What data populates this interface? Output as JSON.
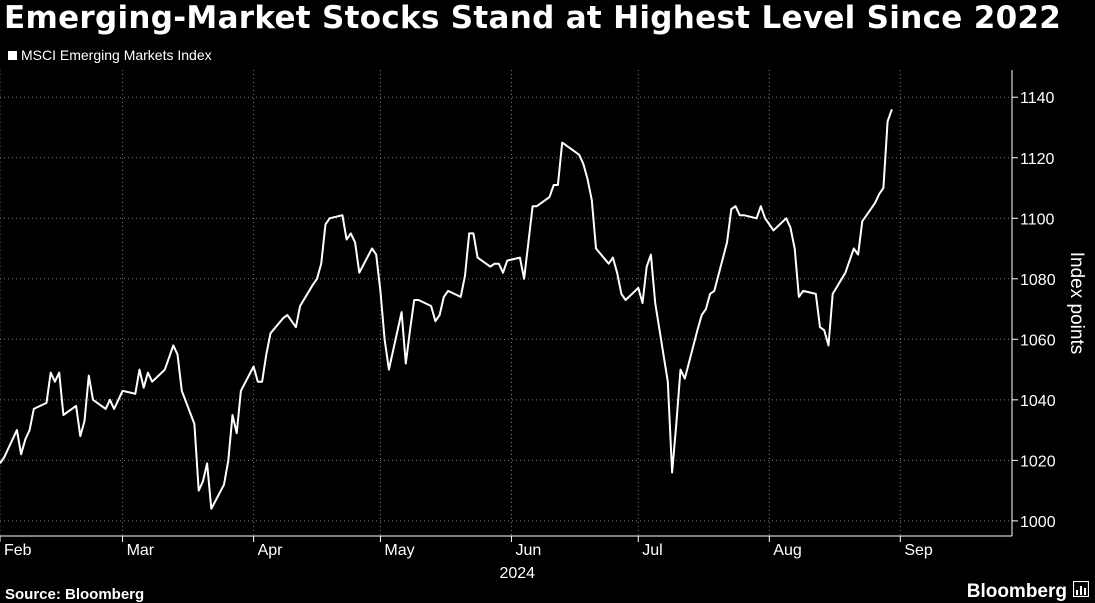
{
  "title": "Emerging-Market Stocks Stand at Highest Level Since 2022",
  "source": "Source: Bloomberg",
  "brand": "Bloomberg",
  "colors": {
    "background": "#000000",
    "line": "#ffffff",
    "grid": "#7a7a7a"
  },
  "chart_data": {
    "type": "line",
    "title": "Emerging-Market Stocks Stand at Highest Level Since 2022",
    "ylabel": "Index points",
    "xlabel": "",
    "x_tick_labels": [
      "Feb",
      "Mar",
      "Apr",
      "May",
      "Jun",
      "Jul",
      "Aug",
      "Sep"
    ],
    "x_year_label": "2024",
    "y_ticks": [
      1000,
      1020,
      1040,
      1060,
      1080,
      1100,
      1120,
      1140
    ],
    "ylim": [
      995,
      1149
    ],
    "xlim": [
      "2024-02-01",
      "2024-09-26"
    ],
    "y_axis_position": "right",
    "grid": true,
    "legend_position": "top-left",
    "series": [
      {
        "name": "MSCI Emerging Markets Index",
        "points": [
          [
            "2024-02-01",
            1019
          ],
          [
            "2024-02-02",
            1021
          ],
          [
            "2024-02-05",
            1030
          ],
          [
            "2024-02-06",
            1022
          ],
          [
            "2024-02-07",
            1027
          ],
          [
            "2024-02-08",
            1030
          ],
          [
            "2024-02-09",
            1037
          ],
          [
            "2024-02-12",
            1039
          ],
          [
            "2024-02-13",
            1049
          ],
          [
            "2024-02-14",
            1046
          ],
          [
            "2024-02-15",
            1049
          ],
          [
            "2024-02-16",
            1035
          ],
          [
            "2024-02-19",
            1038
          ],
          [
            "2024-02-20",
            1028
          ],
          [
            "2024-02-21",
            1033
          ],
          [
            "2024-02-22",
            1048
          ],
          [
            "2024-02-23",
            1040
          ],
          [
            "2024-02-26",
            1037
          ],
          [
            "2024-02-27",
            1040
          ],
          [
            "2024-02-28",
            1037
          ],
          [
            "2024-02-29",
            1040
          ],
          [
            "2024-03-01",
            1043
          ],
          [
            "2024-03-04",
            1042
          ],
          [
            "2024-03-05",
            1050
          ],
          [
            "2024-03-06",
            1044
          ],
          [
            "2024-03-07",
            1049
          ],
          [
            "2024-03-08",
            1046
          ],
          [
            "2024-03-11",
            1050
          ],
          [
            "2024-03-12",
            1054
          ],
          [
            "2024-03-13",
            1058
          ],
          [
            "2024-03-14",
            1055
          ],
          [
            "2024-03-15",
            1043
          ],
          [
            "2024-03-18",
            1032
          ],
          [
            "2024-03-19",
            1010
          ],
          [
            "2024-03-20",
            1013
          ],
          [
            "2024-03-21",
            1019
          ],
          [
            "2024-03-22",
            1004
          ],
          [
            "2024-03-25",
            1012
          ],
          [
            "2024-03-26",
            1020
          ],
          [
            "2024-03-27",
            1035
          ],
          [
            "2024-03-28",
            1029
          ],
          [
            "2024-03-29",
            1043
          ],
          [
            "2024-04-01",
            1051
          ],
          [
            "2024-04-02",
            1046
          ],
          [
            "2024-04-03",
            1046
          ],
          [
            "2024-04-04",
            1055
          ],
          [
            "2024-04-05",
            1062
          ],
          [
            "2024-04-08",
            1067
          ],
          [
            "2024-04-09",
            1068
          ],
          [
            "2024-04-10",
            1066
          ],
          [
            "2024-04-11",
            1064
          ],
          [
            "2024-04-12",
            1071
          ],
          [
            "2024-04-15",
            1078
          ],
          [
            "2024-04-16",
            1080
          ],
          [
            "2024-04-17",
            1085
          ],
          [
            "2024-04-18",
            1098
          ],
          [
            "2024-04-19",
            1100
          ],
          [
            "2024-04-22",
            1101
          ],
          [
            "2024-04-23",
            1093
          ],
          [
            "2024-04-24",
            1095
          ],
          [
            "2024-04-25",
            1092
          ],
          [
            "2024-04-26",
            1082
          ],
          [
            "2024-04-29",
            1090
          ],
          [
            "2024-04-30",
            1088
          ],
          [
            "2024-05-01",
            1076
          ],
          [
            "2024-05-02",
            1060
          ],
          [
            "2024-05-03",
            1050
          ],
          [
            "2024-05-06",
            1069
          ],
          [
            "2024-05-07",
            1052
          ],
          [
            "2024-05-08",
            1063
          ],
          [
            "2024-05-09",
            1073
          ],
          [
            "2024-05-10",
            1073
          ],
          [
            "2024-05-13",
            1071
          ],
          [
            "2024-05-14",
            1066
          ],
          [
            "2024-05-15",
            1068
          ],
          [
            "2024-05-16",
            1074
          ],
          [
            "2024-05-17",
            1076
          ],
          [
            "2024-05-20",
            1074
          ],
          [
            "2024-05-21",
            1081
          ],
          [
            "2024-05-22",
            1095
          ],
          [
            "2024-05-23",
            1095
          ],
          [
            "2024-05-24",
            1087
          ],
          [
            "2024-05-27",
            1084
          ],
          [
            "2024-05-28",
            1085
          ],
          [
            "2024-05-29",
            1085
          ],
          [
            "2024-05-30",
            1082
          ],
          [
            "2024-05-31",
            1086
          ],
          [
            "2024-06-03",
            1087
          ],
          [
            "2024-06-04",
            1080
          ],
          [
            "2024-06-05",
            1092
          ],
          [
            "2024-06-06",
            1104
          ],
          [
            "2024-06-07",
            1104
          ],
          [
            "2024-06-10",
            1107
          ],
          [
            "2024-06-11",
            1111
          ],
          [
            "2024-06-12",
            1111
          ],
          [
            "2024-06-13",
            1125
          ],
          [
            "2024-06-14",
            1124
          ],
          [
            "2024-06-17",
            1121
          ],
          [
            "2024-06-18",
            1118
          ],
          [
            "2024-06-19",
            1113
          ],
          [
            "2024-06-20",
            1106
          ],
          [
            "2024-06-21",
            1090
          ],
          [
            "2024-06-24",
            1085
          ],
          [
            "2024-06-25",
            1087
          ],
          [
            "2024-06-26",
            1082
          ],
          [
            "2024-06-27",
            1075
          ],
          [
            "2024-06-28",
            1073
          ],
          [
            "2024-07-01",
            1077
          ],
          [
            "2024-07-02",
            1072
          ],
          [
            "2024-07-03",
            1084
          ],
          [
            "2024-07-04",
            1088
          ],
          [
            "2024-07-05",
            1072
          ],
          [
            "2024-07-08",
            1046
          ],
          [
            "2024-07-09",
            1016
          ],
          [
            "2024-07-10",
            1032
          ],
          [
            "2024-07-11",
            1050
          ],
          [
            "2024-07-12",
            1047
          ],
          [
            "2024-07-15",
            1063
          ],
          [
            "2024-07-16",
            1068
          ],
          [
            "2024-07-17",
            1070
          ],
          [
            "2024-07-18",
            1075
          ],
          [
            "2024-07-19",
            1076
          ],
          [
            "2024-07-22",
            1092
          ],
          [
            "2024-07-23",
            1103
          ],
          [
            "2024-07-24",
            1104
          ],
          [
            "2024-07-25",
            1101
          ],
          [
            "2024-07-26",
            1101
          ],
          [
            "2024-07-29",
            1100
          ],
          [
            "2024-07-30",
            1104
          ],
          [
            "2024-07-31",
            1100
          ],
          [
            "2024-08-01",
            1098
          ],
          [
            "2024-08-02",
            1096
          ],
          [
            "2024-08-05",
            1100
          ],
          [
            "2024-08-06",
            1097
          ],
          [
            "2024-08-07",
            1090
          ],
          [
            "2024-08-08",
            1074
          ],
          [
            "2024-08-09",
            1076
          ],
          [
            "2024-08-12",
            1075
          ],
          [
            "2024-08-13",
            1064
          ],
          [
            "2024-08-14",
            1063
          ],
          [
            "2024-08-15",
            1058
          ],
          [
            "2024-08-16",
            1075
          ],
          [
            "2024-08-19",
            1082
          ],
          [
            "2024-08-20",
            1086
          ],
          [
            "2024-08-21",
            1090
          ],
          [
            "2024-08-22",
            1088
          ],
          [
            "2024-08-23",
            1099
          ],
          [
            "2024-08-26",
            1105
          ],
          [
            "2024-08-27",
            1108
          ],
          [
            "2024-08-28",
            1110
          ],
          [
            "2024-08-29",
            1132
          ],
          [
            "2024-08-30",
            1136
          ]
        ]
      }
    ]
  }
}
